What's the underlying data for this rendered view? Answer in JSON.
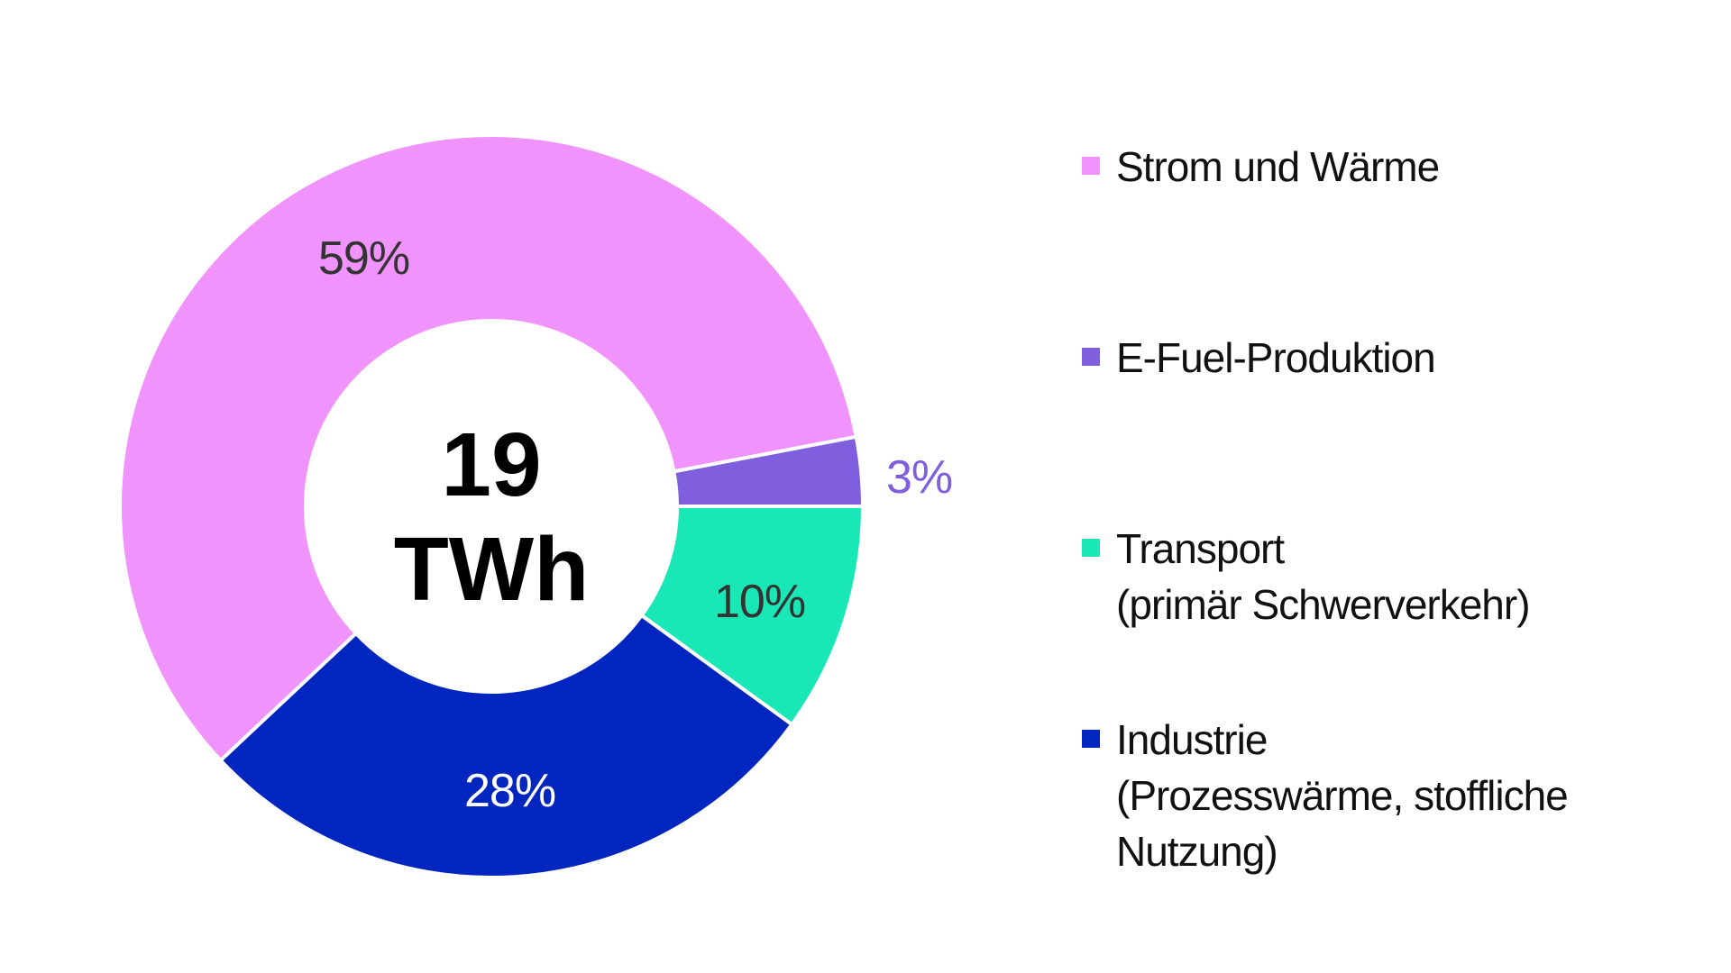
{
  "chart_data": {
    "type": "pie",
    "variant": "donut",
    "center_label": [
      "19",
      "TWh"
    ],
    "slices": [
      {
        "label": "Strom und Wärme",
        "legend_lines": [
          "Strom und Wärme"
        ],
        "value": 59,
        "value_label": "59%",
        "color": "#F093FC",
        "label_color": "#333333"
      },
      {
        "label": "E-Fuel-Produktion",
        "legend_lines": [
          "E-Fuel-Produktion"
        ],
        "value": 3,
        "value_label": "3%",
        "color": "#7F5FDD",
        "label_color": "#7F5FDD"
      },
      {
        "label": "Transport (primär Schwerverkehr)",
        "legend_lines": [
          "Transport",
          "(primär Schwerverkehr)"
        ],
        "value": 10,
        "value_label": "10%",
        "color": "#19E8B6",
        "label_color": "#333333"
      },
      {
        "label": "Industrie (Prozesswärme, stoffliche Nutzung)",
        "legend_lines": [
          "Industrie",
          "(Prozesswärme, stoffliche",
          "Nutzung)"
        ],
        "value": 28,
        "value_label": "28%",
        "color": "#0026BF",
        "label_color": "#ffffff"
      }
    ],
    "legend_position": "right"
  }
}
